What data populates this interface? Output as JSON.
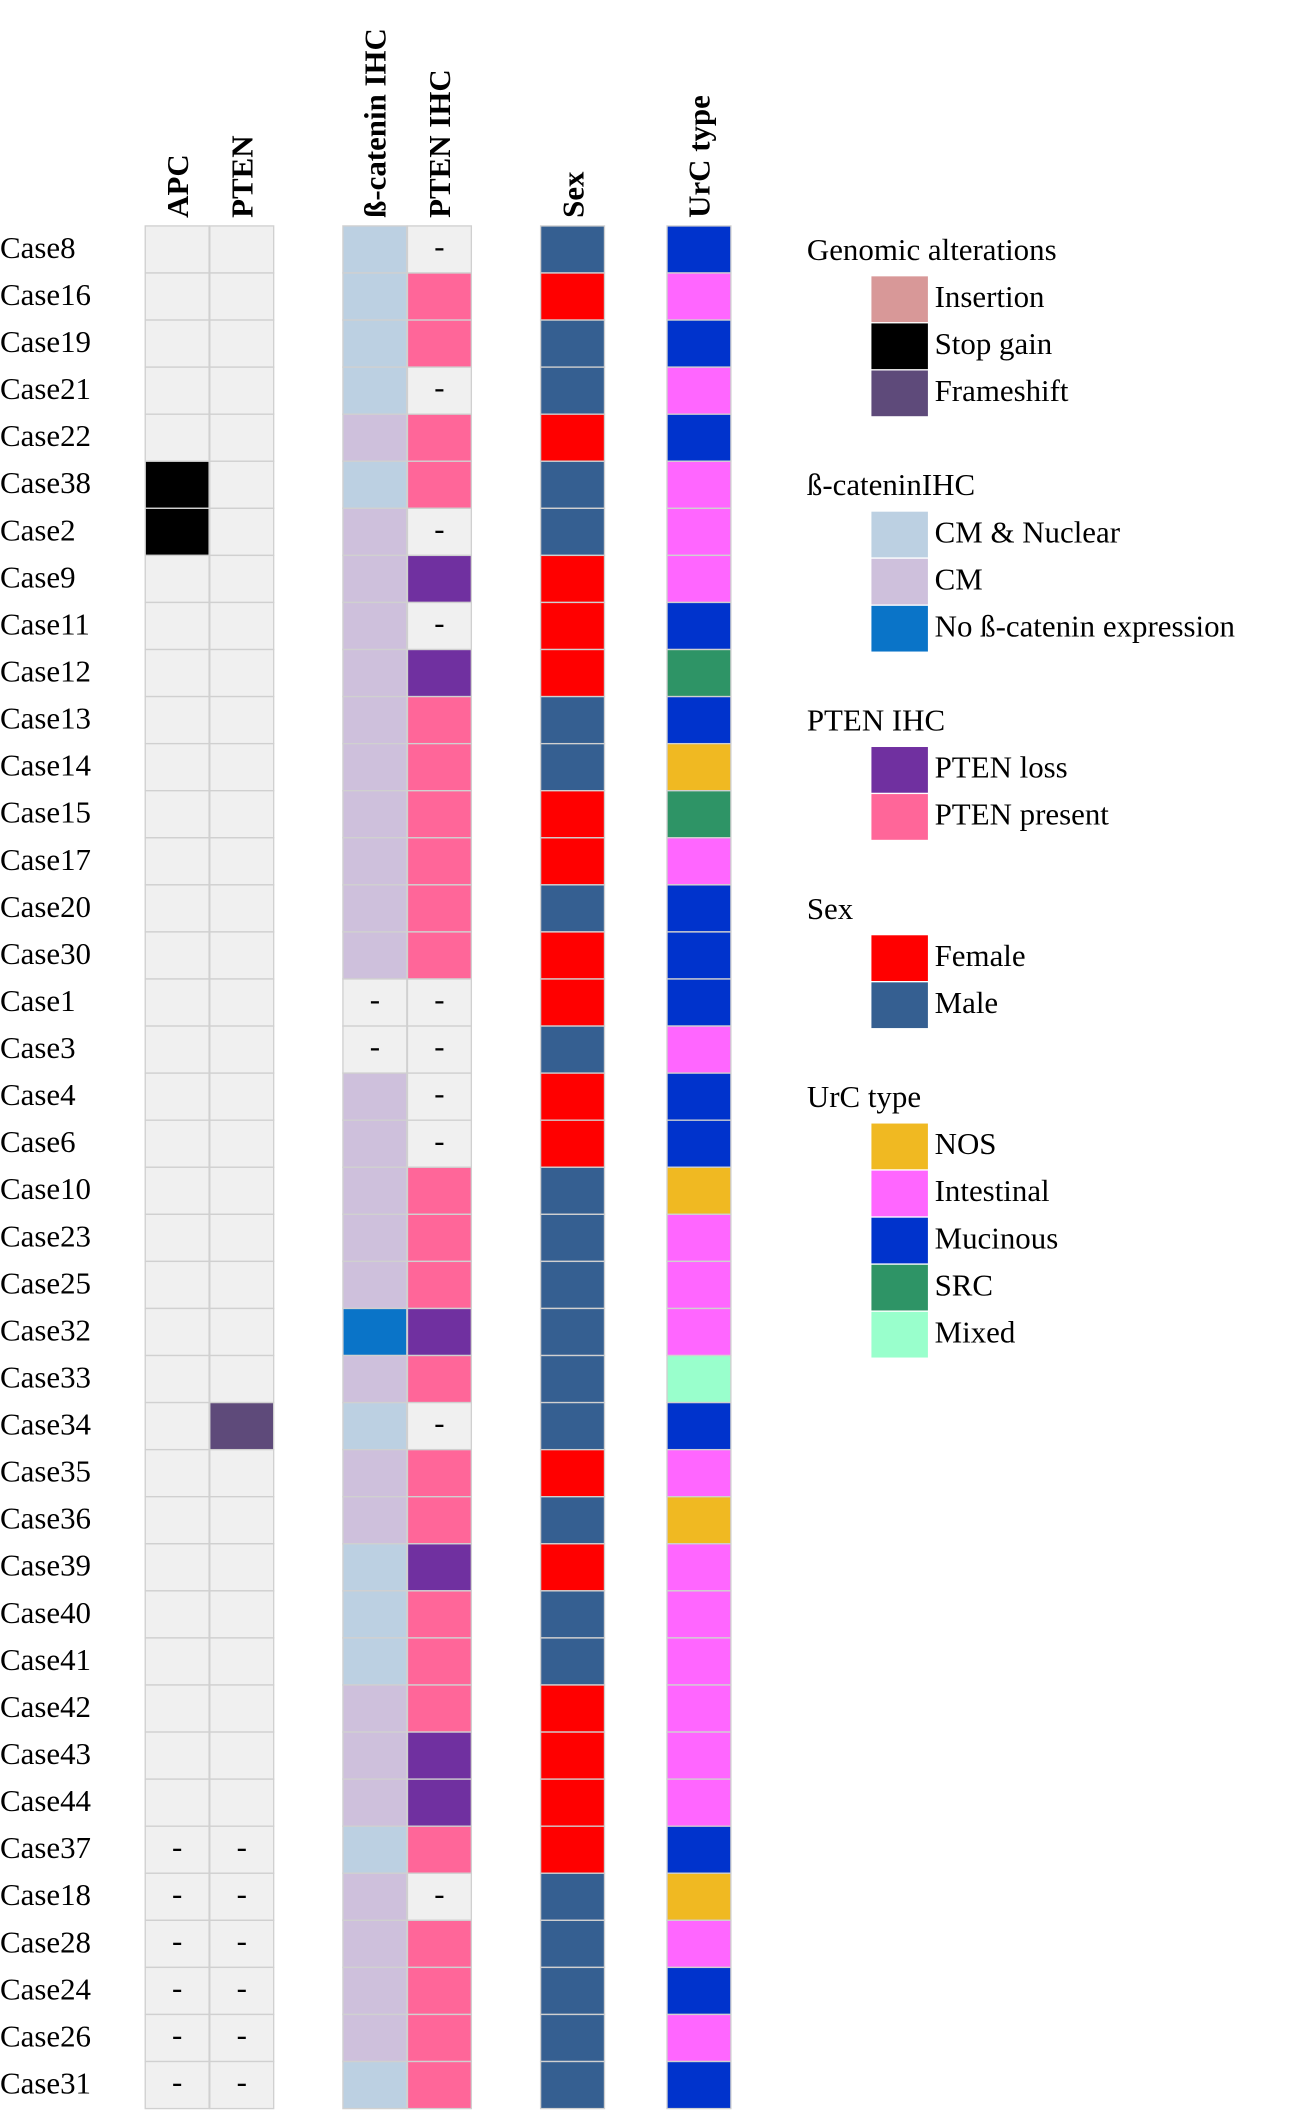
{
  "columns": [
    "APC",
    "PTEN",
    "ß-catenin IHC",
    "PTEN IHC",
    "Sex",
    "UrC type"
  ],
  "rows": [
    {
      "case": "Case8",
      "cells": [
        null,
        null,
        "CM & Nuclear",
        "-",
        "Male",
        "Mucinous"
      ]
    },
    {
      "case": "Case16",
      "cells": [
        null,
        null,
        "CM & Nuclear",
        "PTEN present",
        "Female",
        "Intestinal"
      ]
    },
    {
      "case": "Case19",
      "cells": [
        null,
        null,
        "CM & Nuclear",
        "PTEN present",
        "Male",
        "Mucinous"
      ]
    },
    {
      "case": "Case21",
      "cells": [
        null,
        null,
        "CM & Nuclear",
        "-",
        "Male",
        "Intestinal"
      ]
    },
    {
      "case": "Case22",
      "cells": [
        null,
        null,
        "CM",
        "PTEN present",
        "Female",
        "Mucinous"
      ]
    },
    {
      "case": "Case38",
      "cells": [
        "Stop gain",
        null,
        "CM & Nuclear",
        "PTEN present",
        "Male",
        "Intestinal"
      ]
    },
    {
      "case": "Case2",
      "cells": [
        "Stop gain",
        null,
        "CM",
        "-",
        "Male",
        "Intestinal"
      ]
    },
    {
      "case": "Case9",
      "cells": [
        null,
        null,
        "CM",
        "PTEN loss",
        "Female",
        "Intestinal"
      ]
    },
    {
      "case": "Case11",
      "cells": [
        null,
        null,
        "CM",
        "-",
        "Female",
        "Mucinous"
      ]
    },
    {
      "case": "Case12",
      "cells": [
        null,
        null,
        "CM",
        "PTEN loss",
        "Female",
        "SRC"
      ]
    },
    {
      "case": "Case13",
      "cells": [
        null,
        null,
        "CM",
        "PTEN present",
        "Male",
        "Mucinous"
      ]
    },
    {
      "case": "Case14",
      "cells": [
        null,
        null,
        "CM",
        "PTEN present",
        "Male",
        "NOS"
      ]
    },
    {
      "case": "Case15",
      "cells": [
        null,
        null,
        "CM",
        "PTEN present",
        "Female",
        "SRC"
      ]
    },
    {
      "case": "Case17",
      "cells": [
        null,
        null,
        "CM",
        "PTEN present",
        "Female",
        "Intestinal"
      ]
    },
    {
      "case": "Case20",
      "cells": [
        null,
        null,
        "CM",
        "PTEN present",
        "Male",
        "Mucinous"
      ]
    },
    {
      "case": "Case30",
      "cells": [
        null,
        null,
        "CM",
        "PTEN present",
        "Female",
        "Mucinous"
      ]
    },
    {
      "case": "Case1",
      "cells": [
        null,
        null,
        "-",
        "-",
        "Female",
        "Mucinous"
      ]
    },
    {
      "case": "Case3",
      "cells": [
        null,
        null,
        "-",
        "-",
        "Male",
        "Intestinal"
      ]
    },
    {
      "case": "Case4",
      "cells": [
        null,
        null,
        "CM",
        "-",
        "Female",
        "Mucinous"
      ]
    },
    {
      "case": "Case6",
      "cells": [
        null,
        null,
        "CM",
        "-",
        "Female",
        "Mucinous"
      ]
    },
    {
      "case": "Case10",
      "cells": [
        null,
        null,
        "CM",
        "PTEN present",
        "Male",
        "NOS"
      ]
    },
    {
      "case": "Case23",
      "cells": [
        null,
        null,
        "CM",
        "PTEN present",
        "Male",
        "Intestinal"
      ]
    },
    {
      "case": "Case25",
      "cells": [
        null,
        null,
        "CM",
        "PTEN present",
        "Male",
        "Intestinal"
      ]
    },
    {
      "case": "Case32",
      "cells": [
        null,
        null,
        "No ß-catenin expression",
        "PTEN loss",
        "Male",
        "Intestinal"
      ]
    },
    {
      "case": "Case33",
      "cells": [
        null,
        null,
        "CM",
        "PTEN present",
        "Male",
        "Mixed"
      ]
    },
    {
      "case": "Case34",
      "cells": [
        null,
        "Frameshift",
        "CM & Nuclear",
        "-",
        "Male",
        "Mucinous"
      ]
    },
    {
      "case": "Case35",
      "cells": [
        null,
        null,
        "CM",
        "PTEN present",
        "Female",
        "Intestinal"
      ]
    },
    {
      "case": "Case36",
      "cells": [
        null,
        null,
        "CM",
        "PTEN present",
        "Male",
        "NOS"
      ]
    },
    {
      "case": "Case39",
      "cells": [
        null,
        null,
        "CM & Nuclear",
        "PTEN loss",
        "Female",
        "Intestinal"
      ]
    },
    {
      "case": "Case40",
      "cells": [
        null,
        null,
        "CM & Nuclear",
        "PTEN present",
        "Male",
        "Intestinal"
      ]
    },
    {
      "case": "Case41",
      "cells": [
        null,
        null,
        "CM & Nuclear",
        "PTEN present",
        "Male",
        "Intestinal"
      ]
    },
    {
      "case": "Case42",
      "cells": [
        null,
        null,
        "CM",
        "PTEN present",
        "Female",
        "Intestinal"
      ]
    },
    {
      "case": "Case43",
      "cells": [
        null,
        null,
        "CM",
        "PTEN loss",
        "Female",
        "Intestinal"
      ]
    },
    {
      "case": "Case44",
      "cells": [
        null,
        null,
        "CM",
        "PTEN loss",
        "Female",
        "Intestinal"
      ]
    },
    {
      "case": "Case37",
      "cells": [
        "-",
        "-",
        "CM & Nuclear",
        "PTEN present",
        "Female",
        "Mucinous"
      ]
    },
    {
      "case": "Case18",
      "cells": [
        "-",
        "-",
        "CM",
        "-",
        "Male",
        "NOS"
      ]
    },
    {
      "case": "Case28",
      "cells": [
        "-",
        "-",
        "CM",
        "PTEN present",
        "Male",
        "Intestinal"
      ]
    },
    {
      "case": "Case24",
      "cells": [
        "-",
        "-",
        "CM",
        "PTEN present",
        "Male",
        "Mucinous"
      ]
    },
    {
      "case": "Case26",
      "cells": [
        "-",
        "-",
        "CM",
        "PTEN present",
        "Male",
        "Intestinal"
      ]
    },
    {
      "case": "Case31",
      "cells": [
        "-",
        "-",
        "CM & Nuclear",
        "PTEN present",
        "Male",
        "Mucinous"
      ]
    }
  ],
  "legend": [
    {
      "title": "Genomic alterations",
      "items": [
        {
          "label": "Insertion",
          "color": "#d89898"
        },
        {
          "label": "Stop gain",
          "color": "#000000"
        },
        {
          "label": "Frameshift",
          "color": "#5e4a7a"
        }
      ]
    },
    {
      "title": "ß-cateninIHC",
      "items": [
        {
          "label": "CM & Nuclear",
          "color": "#bcd0e2"
        },
        {
          "label": "CM",
          "color": "#cec0dc"
        },
        {
          "label": "No ß-catenin expression",
          "color": "#0a74c8"
        }
      ]
    },
    {
      "title": "PTEN IHC",
      "items": [
        {
          "label": "PTEN loss",
          "color": "#7030a0"
        },
        {
          "label": "PTEN present",
          "color": "#ff6699"
        }
      ]
    },
    {
      "title": "Sex",
      "items": [
        {
          "label": "Female",
          "color": "#ff0000"
        },
        {
          "label": "Male",
          "color": "#355f91"
        }
      ]
    },
    {
      "title": "UrC type",
      "items": [
        {
          "label": "NOS",
          "color": "#f0b922"
        },
        {
          "label": "Intestinal",
          "color": "#ff66ff"
        },
        {
          "label": "Mucinous",
          "color": "#0033cc"
        },
        {
          "label": "SRC",
          "color": "#2e9466"
        },
        {
          "label": "Mixed",
          "color": "#99ffcc"
        }
      ]
    }
  ]
}
